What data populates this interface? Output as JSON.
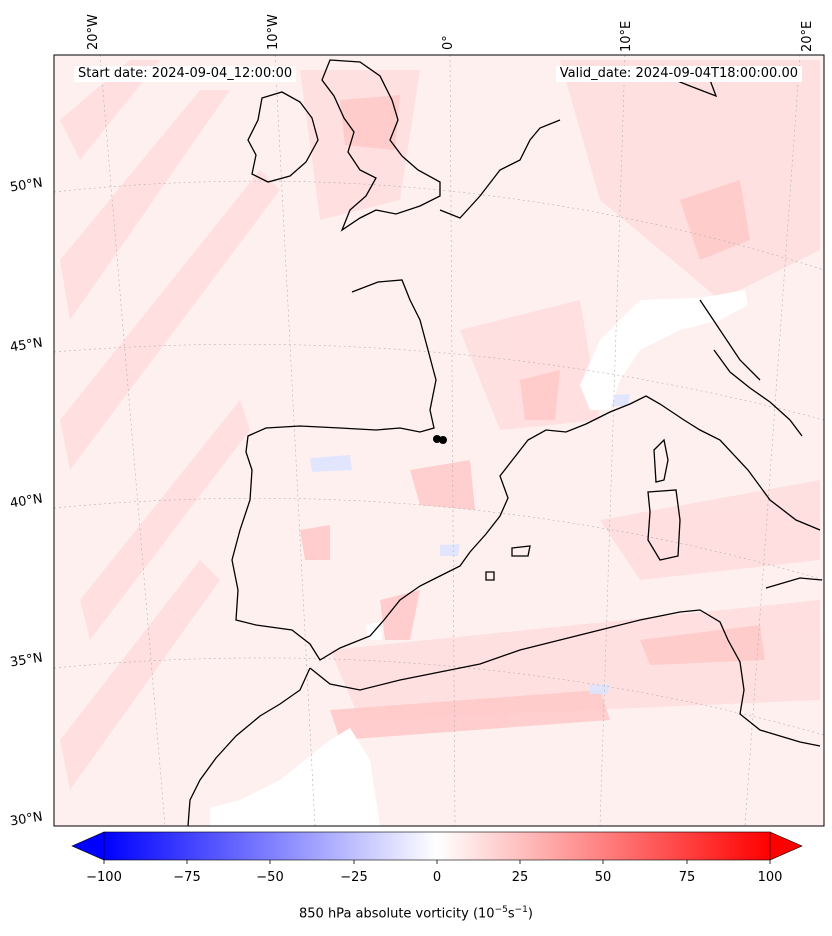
{
  "header": {
    "start_date": "Start date: 2024-09-04_12:00:00",
    "valid_date": "Valid_date: 2024-09-04T18:00:00.00"
  },
  "map": {
    "field": "850 hPa absolute vorticity",
    "lon_labels": [
      "20°W",
      "10°W",
      "0°",
      "10°E",
      "20°E"
    ],
    "lat_labels": [
      "50°N",
      "45°N",
      "40°N",
      "35°N",
      "30°N"
    ],
    "colors": {
      "land_coast": "#000000",
      "base_field": "#fff0f0",
      "positive_light": "#ffd5d5",
      "positive_mid": "#ffb3b3",
      "negative_light": "#dfe3ff",
      "no_data": "#ffffff"
    }
  },
  "colorbar": {
    "ticks": [
      "−100",
      "−75",
      "−50",
      "−25",
      "0",
      "25",
      "50",
      "75",
      "100"
    ],
    "min": -100,
    "max": 100,
    "label": "850 hPa absolute vorticity (10",
    "label_exp1": "−5",
    "label_mid": "s",
    "label_exp2": "−1",
    "label_end": ")",
    "colormap": "bwr"
  }
}
